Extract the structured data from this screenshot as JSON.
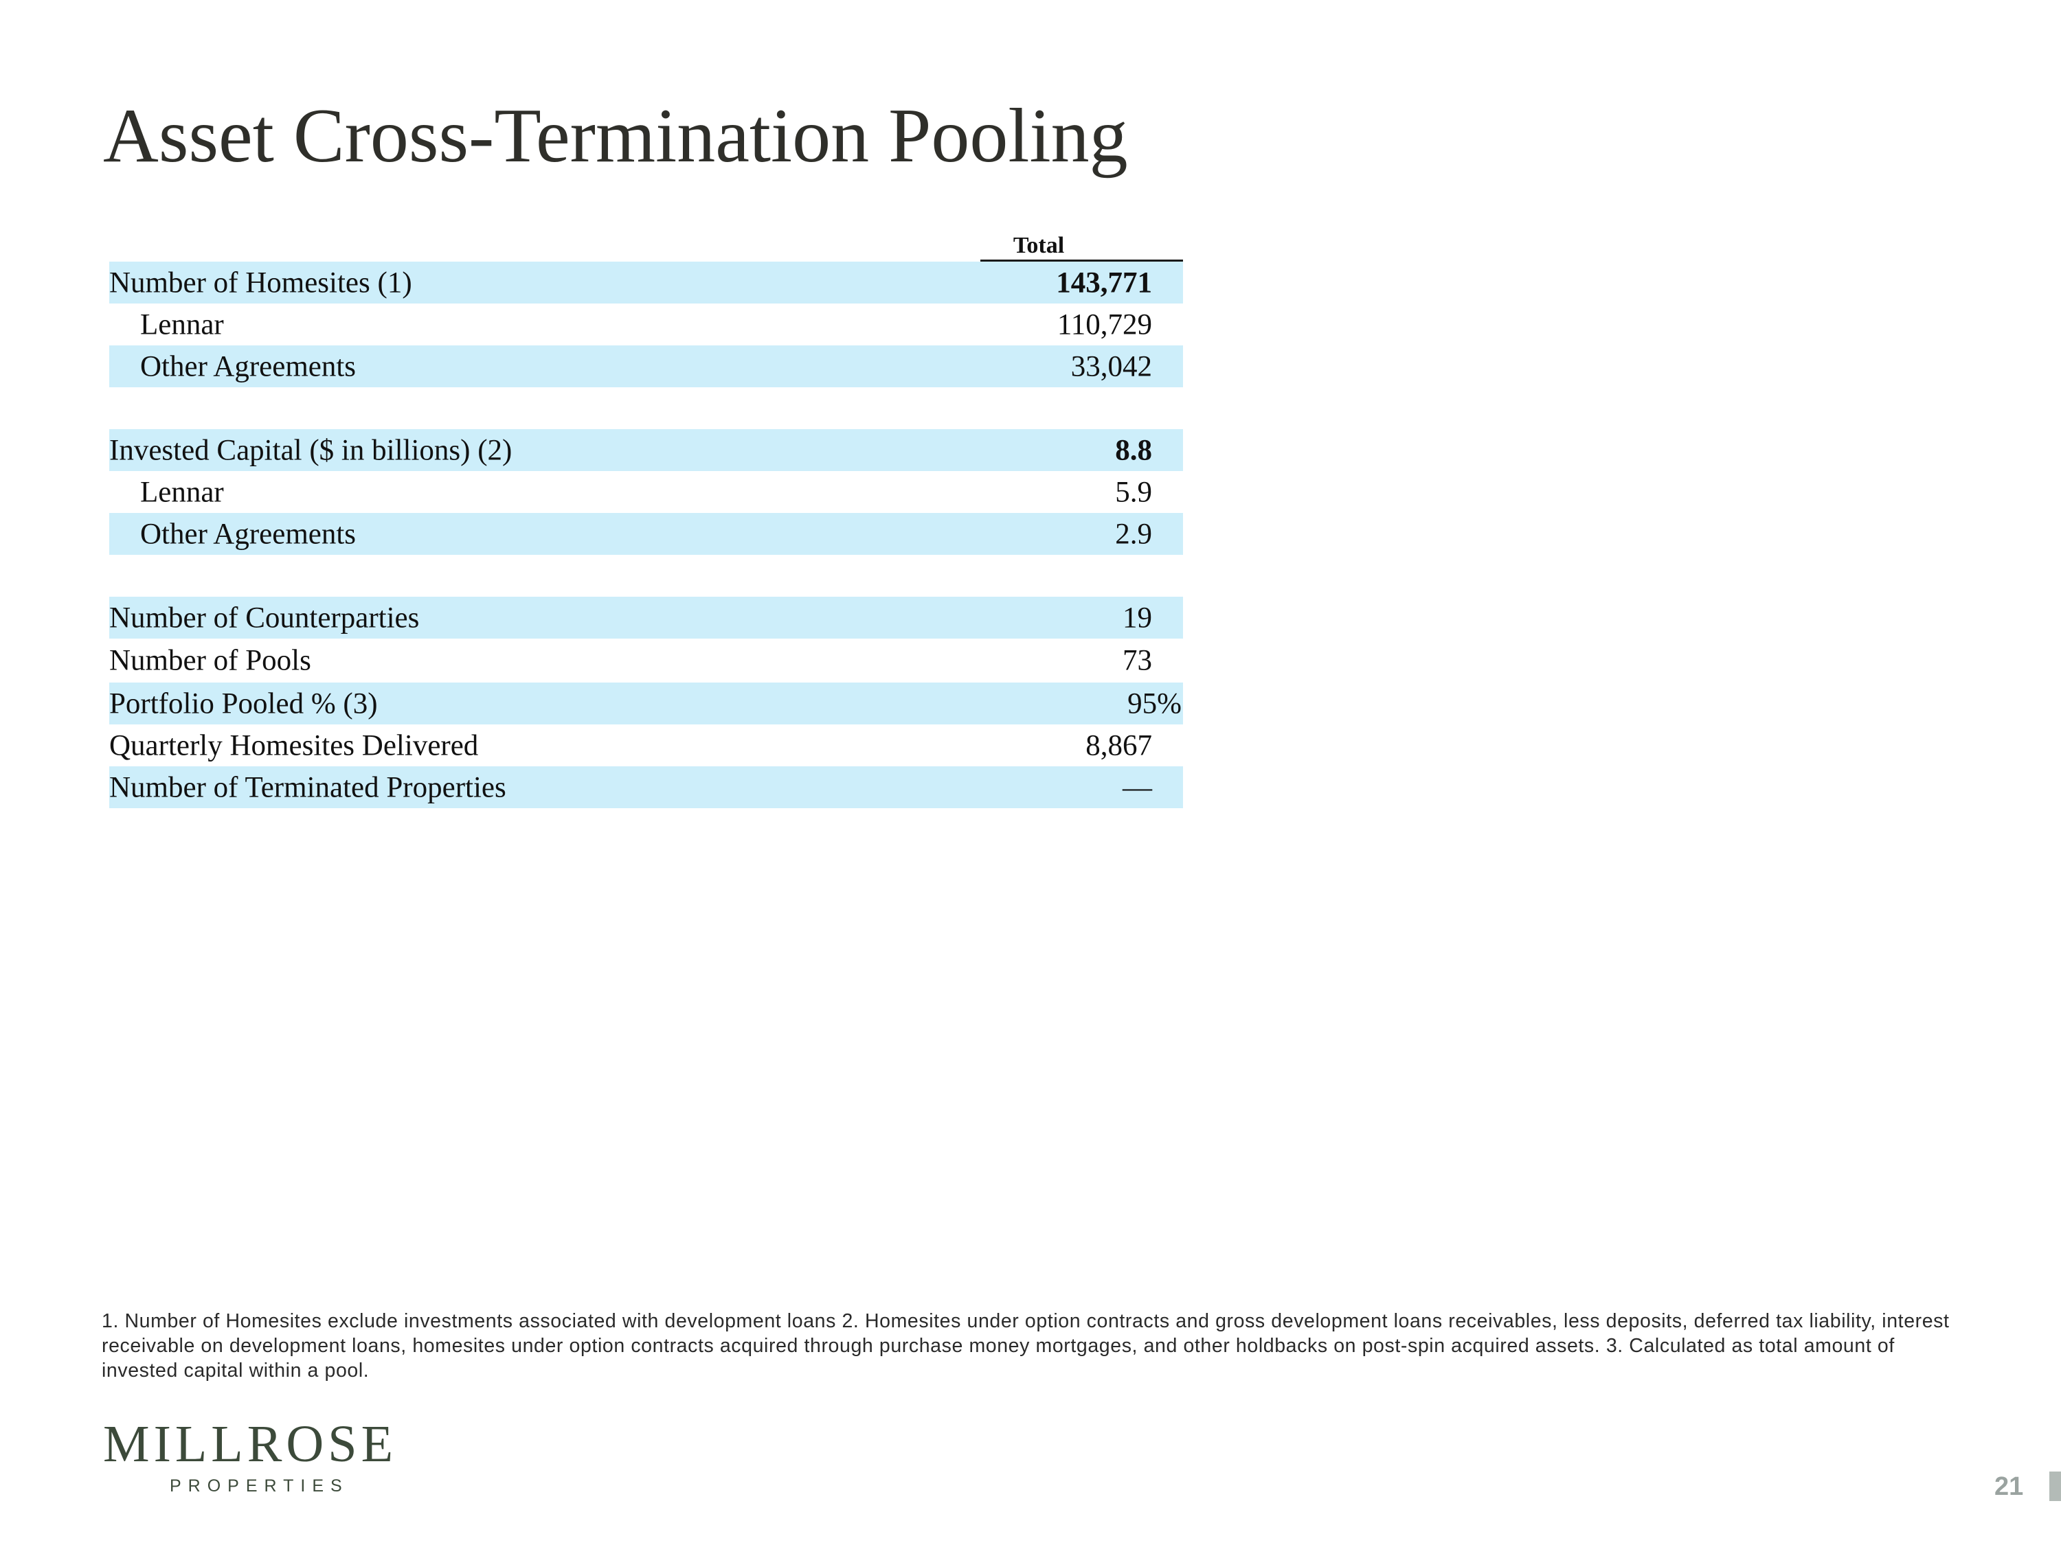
{
  "title": "Asset Cross-Termination Pooling",
  "table": {
    "column_header": "Total",
    "rows": [
      {
        "label": "Number of Homesites (1)",
        "value": "143,771"
      },
      {
        "label": "Lennar",
        "value": "110,729"
      },
      {
        "label": "Other Agreements",
        "value": "33,042"
      },
      {
        "label": "Invested Capital ($ in billions) (2)",
        "value": "8.8"
      },
      {
        "label": "Lennar",
        "value": "5.9"
      },
      {
        "label": "Other Agreements",
        "value": "2.9"
      },
      {
        "label": "Number of Counterparties",
        "value": "19"
      },
      {
        "label": "Number of Pools",
        "value": "73"
      },
      {
        "label": "Portfolio Pooled % (3)",
        "value": "95%"
      },
      {
        "label": "Quarterly Homesites Delivered",
        "value": "8,867"
      },
      {
        "label": "Number of Terminated Properties",
        "value": "—"
      }
    ]
  },
  "footnote": "1. Number of Homesites exclude investments associated with development loans  2. Homesites under option contracts and gross development loans receivables, less deposits, deferred tax liability, interest receivable on development loans, homesites under option contracts acquired through purchase money mortgages, and other holdbacks on post-spin acquired assets. 3. Calculated as total amount of invested capital within a pool.",
  "logo": {
    "wordmark": "MILLROSE",
    "subtitle": "PROPERTIES"
  },
  "page_number": "21",
  "colors": {
    "row_shade": "#cdeefa",
    "title": "#2f2f2a",
    "logo": "#3c4a3a",
    "page_number": "#9aa3a0"
  }
}
